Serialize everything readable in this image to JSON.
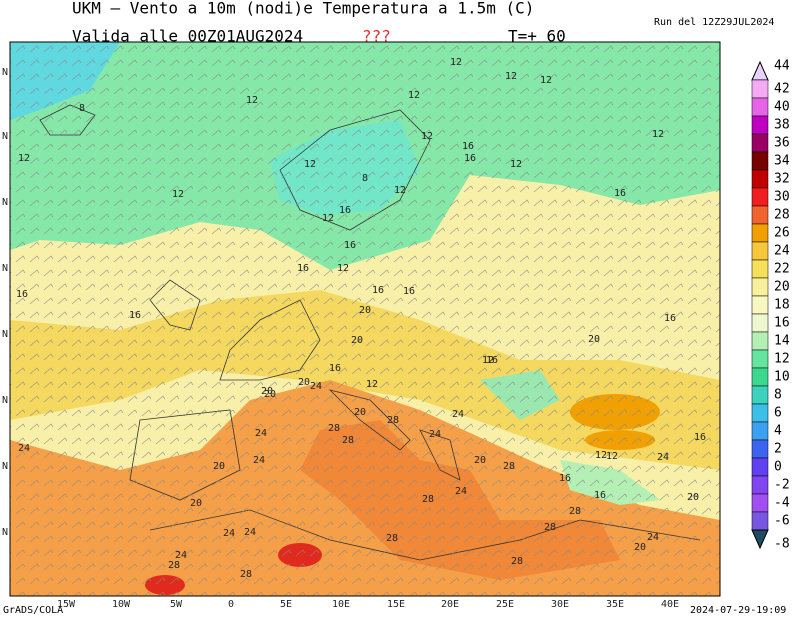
{
  "header": {
    "title": "UKM — Vento a 10m (nodi)e Temperatura a 1.5m (C)",
    "valid": "Valida alle 00Z01AUG2024",
    "flag": "???",
    "step": "T=+ 60",
    "run": "Run del 12Z29JUL2024"
  },
  "map": {
    "lon_labels": [
      "15W",
      "10W",
      "5W",
      "0",
      "5E",
      "10E",
      "15E",
      "20E",
      "25E",
      "30E",
      "35E",
      "40E"
    ],
    "lat_labels": [
      "N",
      "N",
      "N",
      "N",
      "N",
      "N",
      "N",
      "N"
    ],
    "contour_labels": [
      "12",
      "8",
      "12",
      "12",
      "12",
      "12",
      "12",
      "12",
      "16",
      "16",
      "12",
      "12",
      "12",
      "16",
      "12",
      "12",
      "8",
      "12",
      "16",
      "16",
      "16",
      "12",
      "16",
      "16",
      "16",
      "16",
      "20",
      "16",
      "20",
      "16",
      "20",
      "12",
      "20",
      "20",
      "24",
      "16",
      "12",
      "20",
      "20",
      "20",
      "24",
      "28",
      "24",
      "28",
      "20",
      "24",
      "28",
      "28",
      "24",
      "20",
      "24",
      "28",
      "28",
      "24",
      "28",
      "28",
      "28",
      "20",
      "16",
      "12",
      "16",
      "20",
      "24",
      "24",
      "28",
      "24",
      "28",
      "24",
      "24",
      "16",
      "12"
    ]
  },
  "colorbar": {
    "levels": [
      44,
      42,
      40,
      38,
      36,
      34,
      32,
      30,
      28,
      26,
      24,
      22,
      20,
      18,
      16,
      14,
      12,
      10,
      8,
      6,
      4,
      2,
      0,
      -2,
      -4,
      -6,
      -8
    ],
    "colors": [
      "#e6d2fa",
      "#f5aaf5",
      "#e664e6",
      "#c000c0",
      "#9a0064",
      "#780000",
      "#c00000",
      "#f01e1e",
      "#f0642d",
      "#f0a000",
      "#f5c83c",
      "#f5e05a",
      "#f8f09a",
      "#f8f8c0",
      "#eef8d0",
      "#b4f0b4",
      "#64e6a0",
      "#3cd890",
      "#3cd2be",
      "#3cbee6",
      "#3ca0f0",
      "#3c64f0",
      "#6040f0",
      "#8246f0",
      "#a050f0",
      "#7858e0",
      "#204a60"
    ]
  },
  "footer": {
    "left": "GrADS/COLA",
    "right": "2024-07-29-19:09"
  }
}
